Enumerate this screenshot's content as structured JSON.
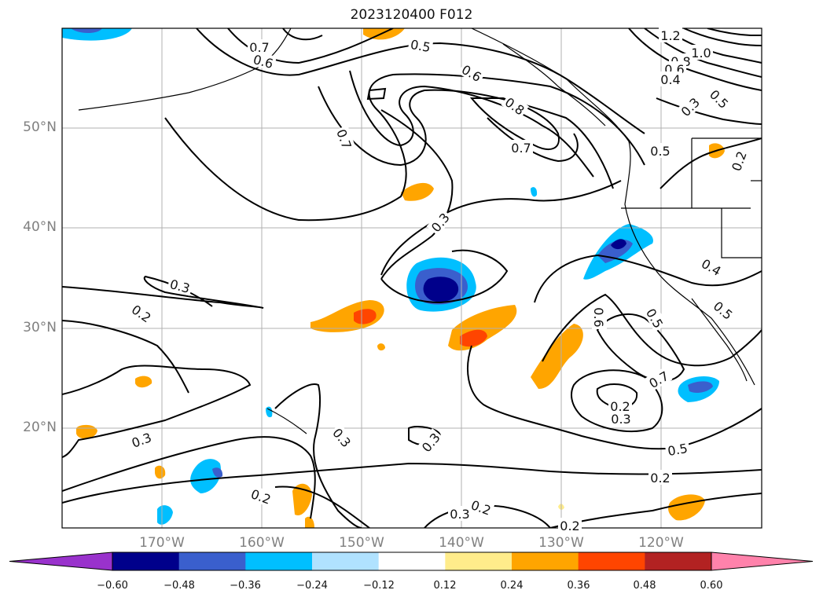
{
  "title": "2023120400 F012",
  "lat_labels": [
    "50°N",
    "40°N",
    "30°N",
    "20°N"
  ],
  "lon_labels": [
    "170°W",
    "160°W",
    "150°W",
    "140°W",
    "130°W",
    "120°W"
  ],
  "colorbar": {
    "ticks": [
      "−0.60",
      "−0.48",
      "−0.36",
      "−0.24",
      "−0.12",
      "0.12",
      "0.24",
      "0.36",
      "0.48",
      "0.60"
    ],
    "colors": [
      "#9932cc",
      "#00008b",
      "#3a5fcd",
      "#00bfff",
      "#b0e2ff",
      "#ffffff",
      "#ffec8b",
      "#ffa500",
      "#ff4500",
      "#b22222",
      "#ff82ab"
    ]
  },
  "contour_labels": [
    "0.7",
    "0.6",
    "0.5",
    "0.6",
    "0.7",
    "0.8",
    "0.7",
    "1.2",
    "1.0",
    "0.8",
    "0.6",
    "0.4",
    "0.5",
    "0.3",
    "0.5",
    "0.2",
    "0.3",
    "0.3",
    "0.2",
    "0.4",
    "0.5",
    "0.6",
    "0.5",
    "0.7",
    "0.2",
    "0.3",
    "0.3",
    "0.3",
    "0.3",
    "0.5",
    "0.2",
    "0.2",
    "0.2",
    "0.3",
    "0.2"
  ]
}
